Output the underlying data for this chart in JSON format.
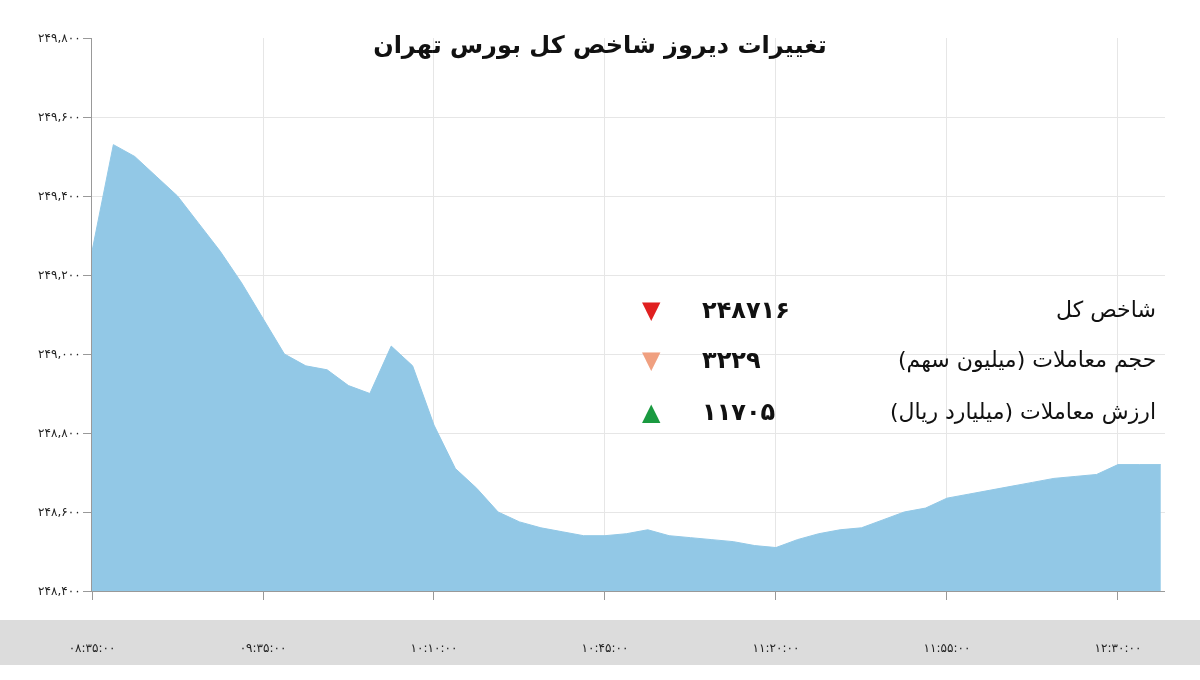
{
  "chart_data": {
    "type": "area",
    "title": "تغییرات دیروز شاخص کل بورس تهران",
    "categories": [
      "۰۸:۳۵:۰۰",
      null,
      null,
      null,
      null,
      null,
      null,
      null,
      "۰۹:۳۵:۰۰",
      null,
      null,
      null,
      null,
      null,
      null,
      null,
      "۱۰:۱۰:۰۰",
      null,
      null,
      null,
      null,
      null,
      null,
      null,
      "۱۰:۴۵:۰۰",
      null,
      null,
      null,
      null,
      null,
      null,
      null,
      "۱۱:۲۰:۰۰",
      null,
      null,
      null,
      null,
      null,
      null,
      null,
      "۱۱:۵۵:۰۰",
      null,
      null,
      null,
      null,
      null,
      null,
      null,
      "۱۲:۳۰:۰۰",
      null,
      null
    ],
    "series": [
      {
        "color": "#92c8e6",
        "values": [
          249260,
          249530,
          249500,
          249450,
          249400,
          249330,
          249260,
          249180,
          249090,
          249000,
          248970,
          248960,
          248920,
          248900,
          249020,
          248970,
          248820,
          248710,
          248660,
          248600,
          248575,
          248560,
          248550,
          248540,
          248540,
          248545,
          248555,
          248540,
          248535,
          248530,
          248525,
          248515,
          248510,
          248530,
          248545,
          248555,
          248560,
          248580,
          248600,
          248610,
          248635,
          248645,
          248655,
          248665,
          248675,
          248685,
          248690,
          248695,
          248720,
          248720,
          248720
        ]
      }
    ],
    "ylim": [
      248400,
      249800
    ],
    "yticks": [
      {
        "value": 248400,
        "label": "۲۴۸,۴۰۰"
      },
      {
        "value": 248600,
        "label": "۲۴۸,۶۰۰"
      },
      {
        "value": 248800,
        "label": "۲۴۸,۸۰۰"
      },
      {
        "value": 249000,
        "label": "۲۴۹,۰۰۰"
      },
      {
        "value": 249200,
        "label": "۲۴۹,۲۰۰"
      },
      {
        "value": 249400,
        "label": "۲۴۹,۴۰۰"
      },
      {
        "value": 249600,
        "label": "۲۴۹,۶۰۰"
      },
      {
        "value": 249800,
        "label": "۲۴۹,۸۰۰"
      }
    ],
    "grid": true,
    "annotations": [
      "شاخص کل",
      "۲۴۸۷۱۶",
      "▼",
      "حجم معاملات (میلیون سهم)",
      "۳۲۲۹",
      "▼",
      "ارزش معاملات (میلیارد ریال)",
      "۱۱۷۰۵",
      "▲"
    ]
  }
}
